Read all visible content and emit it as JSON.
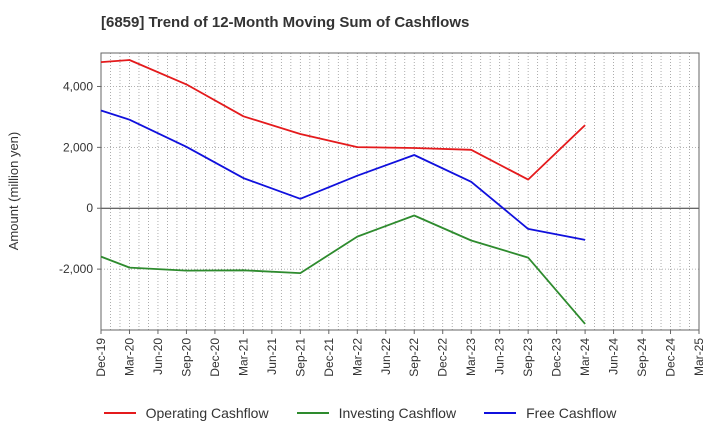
{
  "chart_data": {
    "type": "line",
    "title": "[6859]  Trend of 12-Month Moving Sum of Cashflows",
    "ylabel": "Amount (million yen)",
    "xlabel": "",
    "x": [
      "Dec-19",
      "Mar-20",
      "Jun-20",
      "Sep-20",
      "Dec-20",
      "Mar-21",
      "Jun-21",
      "Sep-21",
      "Dec-21",
      "Mar-22",
      "Jun-22",
      "Sep-22",
      "Dec-22",
      "Mar-23",
      "Jun-23",
      "Sep-23",
      "Dec-23",
      "Mar-24",
      "Jun-24",
      "Sep-24",
      "Dec-24",
      "Mar-25"
    ],
    "ylim": [
      -4000,
      5100
    ],
    "yticks": [
      -2000,
      0,
      2000,
      4000
    ],
    "ytick_labels": [
      "-2,000",
      "0",
      "2,000",
      "4,000"
    ],
    "grid": true,
    "legend_position": "bottom",
    "series": [
      {
        "name": "Operating Cashflow",
        "color": "#e41a1c",
        "values": [
          4800,
          4870,
          null,
          4070,
          null,
          3020,
          null,
          2440,
          null,
          2010,
          null,
          1980,
          null,
          1920,
          null,
          940,
          null,
          2730,
          null,
          null,
          null,
          null
        ]
      },
      {
        "name": "Investing Cashflow",
        "color": "#2e8b2e",
        "values": [
          -1590,
          -1950,
          null,
          -2050,
          null,
          -2040,
          null,
          -2130,
          null,
          -930,
          null,
          -240,
          null,
          -1060,
          null,
          -1620,
          null,
          -3800,
          null,
          null,
          null,
          null
        ]
      },
      {
        "name": "Free Cashflow",
        "color": "#1010dd",
        "values": [
          3210,
          2910,
          null,
          2020,
          null,
          990,
          null,
          310,
          null,
          1070,
          null,
          1750,
          null,
          870,
          null,
          -680,
          null,
          -1040,
          null,
          null,
          null,
          null
        ]
      }
    ]
  }
}
